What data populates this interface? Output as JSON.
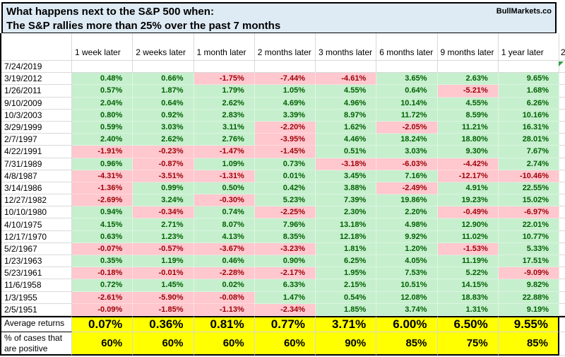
{
  "title": {
    "line1": "What happens next to the S&P 500 when:",
    "line2": "The S&P rallies more than 25% over the past 7 months",
    "brand": "BullMarkets.co"
  },
  "table": {
    "columns": [
      "1 week later",
      "2 weeks later",
      "1 month later",
      "2 months later",
      "3 months later",
      "6 months later",
      "9 months later",
      "1 year later"
    ],
    "partial_next_column": "2",
    "pending_row": {
      "date": "7/24/2019",
      "values": [
        "",
        "",
        "",
        "",
        "",
        "",
        "",
        ""
      ]
    },
    "rows": [
      {
        "date": "3/19/2012",
        "values": [
          "0.48%",
          "0.66%",
          "-1.75%",
          "-7.44%",
          "-4.61%",
          "3.65%",
          "2.63%",
          "9.65%"
        ]
      },
      {
        "date": "1/26/2011",
        "values": [
          "0.57%",
          "1.87%",
          "1.79%",
          "1.05%",
          "4.55%",
          "0.64%",
          "-5.21%",
          "1.68%"
        ]
      },
      {
        "date": "9/10/2009",
        "values": [
          "2.04%",
          "0.64%",
          "2.62%",
          "4.69%",
          "4.96%",
          "10.14%",
          "4.55%",
          "6.26%"
        ]
      },
      {
        "date": "10/3/2003",
        "values": [
          "0.80%",
          "0.92%",
          "2.83%",
          "3.39%",
          "8.97%",
          "11.72%",
          "8.59%",
          "10.16%"
        ]
      },
      {
        "date": "3/29/1999",
        "values": [
          "0.59%",
          "3.03%",
          "3.11%",
          "-2.20%",
          "1.62%",
          "-2.05%",
          "11.21%",
          "16.31%"
        ]
      },
      {
        "date": "2/7/1997",
        "values": [
          "2.40%",
          "2.62%",
          "2.76%",
          "-3.95%",
          "4.46%",
          "18.24%",
          "18.80%",
          "28.01%"
        ]
      },
      {
        "date": "4/22/1991",
        "values": [
          "-1.91%",
          "-0.23%",
          "-1.47%",
          "-1.45%",
          "0.51%",
          "3.03%",
          "9.30%",
          "7.67%"
        ]
      },
      {
        "date": "7/31/1989",
        "values": [
          "0.96%",
          "-0.87%",
          "1.09%",
          "0.73%",
          "-3.18%",
          "-6.03%",
          "-4.42%",
          "2.74%"
        ]
      },
      {
        "date": "4/8/1987",
        "values": [
          "-4.31%",
          "-3.51%",
          "-1.31%",
          "0.01%",
          "3.45%",
          "7.16%",
          "-12.17%",
          "-10.46%"
        ]
      },
      {
        "date": "3/14/1986",
        "values": [
          "-1.36%",
          "0.99%",
          "0.50%",
          "0.42%",
          "3.88%",
          "-2.49%",
          "4.91%",
          "22.55%"
        ]
      },
      {
        "date": "12/27/1982",
        "values": [
          "-2.69%",
          "3.24%",
          "-0.30%",
          "5.23%",
          "7.39%",
          "19.86%",
          "19.23%",
          "15.02%"
        ]
      },
      {
        "date": "10/10/1980",
        "values": [
          "0.94%",
          "-0.34%",
          "0.74%",
          "-2.25%",
          "2.30%",
          "2.20%",
          "-0.49%",
          "-6.97%"
        ]
      },
      {
        "date": "4/10/1975",
        "values": [
          "4.15%",
          "2.71%",
          "8.07%",
          "7.96%",
          "13.18%",
          "4.98%",
          "12.90%",
          "22.01%"
        ]
      },
      {
        "date": "12/17/1970",
        "values": [
          "0.63%",
          "1.23%",
          "4.13%",
          "8.35%",
          "12.18%",
          "9.92%",
          "11.02%",
          "10.77%"
        ]
      },
      {
        "date": "5/2/1967",
        "values": [
          "-0.07%",
          "-0.57%",
          "-3.67%",
          "-3.23%",
          "1.81%",
          "1.20%",
          "-1.53%",
          "5.33%"
        ]
      },
      {
        "date": "1/23/1963",
        "values": [
          "0.35%",
          "1.19%",
          "0.46%",
          "0.90%",
          "6.25%",
          "4.05%",
          "11.19%",
          "17.51%"
        ]
      },
      {
        "date": "5/23/1961",
        "values": [
          "-0.18%",
          "-0.01%",
          "-2.28%",
          "-2.17%",
          "1.95%",
          "7.53%",
          "5.22%",
          "-9.09%"
        ]
      },
      {
        "date": "11/6/1958",
        "values": [
          "0.72%",
          "1.45%",
          "0.02%",
          "6.33%",
          "2.15%",
          "10.51%",
          "14.15%",
          "9.82%"
        ]
      },
      {
        "date": "1/3/1955",
        "values": [
          "-2.61%",
          "-5.90%",
          "-0.08%",
          "1.47%",
          "0.54%",
          "12.08%",
          "18.83%",
          "22.88%"
        ]
      },
      {
        "date": "2/5/1951",
        "values": [
          "-0.09%",
          "-1.85%",
          "-1.13%",
          "-2.34%",
          "1.85%",
          "3.74%",
          "1.31%",
          "9.19%"
        ]
      }
    ],
    "summary": {
      "average_label": "Average returns",
      "average_values": [
        "0.07%",
        "0.36%",
        "0.81%",
        "0.77%",
        "3.71%",
        "6.00%",
        "6.50%",
        "9.55%"
      ],
      "positive_label": "% of cases that are positive",
      "positive_values": [
        "60%",
        "60%",
        "60%",
        "60%",
        "90%",
        "85%",
        "75%",
        "85%"
      ]
    }
  },
  "colors": {
    "title_bg": "#DEEBF5",
    "positive_bg": "#C6EFCE",
    "positive_text": "#006100",
    "negative_bg": "#FFC7CE",
    "negative_text": "#9C0006",
    "summary_bg": "#FFFF00",
    "gridline": "#D9D9D9",
    "triangle_green": "#2F9E44"
  }
}
